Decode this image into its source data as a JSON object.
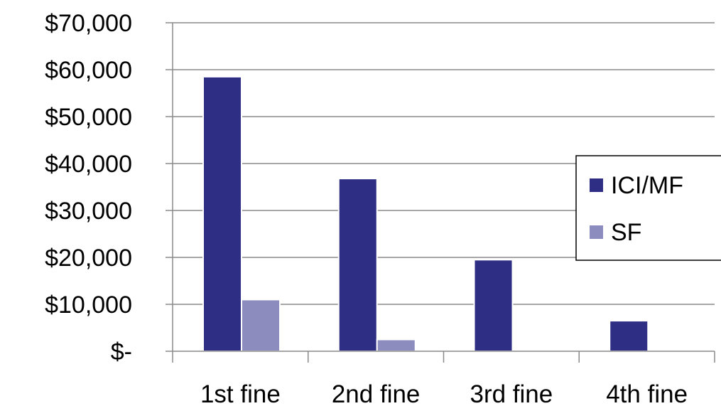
{
  "chart_data": {
    "type": "bar",
    "categories": [
      "1st fine",
      "2nd fine",
      "3rd fine",
      "4th fine"
    ],
    "series": [
      {
        "name": "ICI/MF",
        "color": "#2e2e84",
        "values": [
          58500,
          36800,
          19500,
          6500
        ]
      },
      {
        "name": "SF",
        "color": "#8c8cbf",
        "values": [
          11000,
          2500,
          0,
          0
        ]
      }
    ],
    "ylim": [
      0,
      70000
    ],
    "yticks": [
      {
        "value": 0,
        "label": "$-"
      },
      {
        "value": 10000,
        "label": "$10,000"
      },
      {
        "value": 20000,
        "label": "$20,000"
      },
      {
        "value": 30000,
        "label": "$30,000"
      },
      {
        "value": 40000,
        "label": "$40,000"
      },
      {
        "value": 50000,
        "label": "$50,000"
      },
      {
        "value": 60000,
        "label": "$60,000"
      },
      {
        "value": 70000,
        "label": "$70,000"
      }
    ],
    "grid": true,
    "legend": "right",
    "title": "",
    "xlabel": "",
    "ylabel": ""
  }
}
